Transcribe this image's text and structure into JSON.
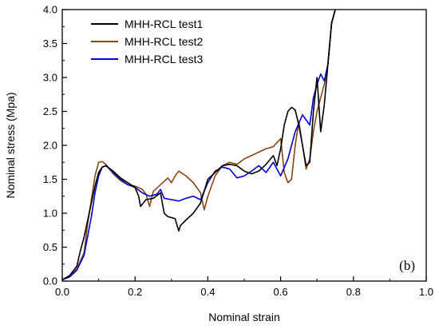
{
  "chart_data": {
    "type": "line",
    "title": "",
    "xlabel": "Nominal strain",
    "ylabel": "Nominal stress (Mpa)",
    "xlim": [
      0.0,
      1.0
    ],
    "ylim": [
      0.0,
      4.0
    ],
    "x_ticks": [
      "0.0",
      "0.2",
      "0.4",
      "0.6",
      "0.8",
      "1.0"
    ],
    "y_ticks": [
      "0.0",
      "0.5",
      "1.0",
      "1.5",
      "2.0",
      "2.5",
      "3.0",
      "3.5",
      "4.0"
    ],
    "grid": false,
    "legend_position": "top-left",
    "annotation": "(b)",
    "series": [
      {
        "name": "MHH-RCL test1",
        "color": "#000000",
        "points": [
          [
            0.0,
            0.02
          ],
          [
            0.02,
            0.08
          ],
          [
            0.04,
            0.22
          ],
          [
            0.05,
            0.45
          ],
          [
            0.06,
            0.65
          ],
          [
            0.07,
            0.9
          ],
          [
            0.08,
            1.15
          ],
          [
            0.09,
            1.4
          ],
          [
            0.1,
            1.6
          ],
          [
            0.11,
            1.68
          ],
          [
            0.12,
            1.7
          ],
          [
            0.14,
            1.62
          ],
          [
            0.16,
            1.52
          ],
          [
            0.18,
            1.45
          ],
          [
            0.2,
            1.38
          ],
          [
            0.21,
            1.25
          ],
          [
            0.215,
            1.1
          ],
          [
            0.23,
            1.2
          ],
          [
            0.25,
            1.22
          ],
          [
            0.27,
            1.3
          ],
          [
            0.28,
            1.0
          ],
          [
            0.29,
            0.95
          ],
          [
            0.31,
            0.92
          ],
          [
            0.32,
            0.74
          ],
          [
            0.325,
            0.82
          ],
          [
            0.34,
            0.9
          ],
          [
            0.36,
            1.0
          ],
          [
            0.38,
            1.15
          ],
          [
            0.4,
            1.5
          ],
          [
            0.42,
            1.6
          ],
          [
            0.44,
            1.7
          ],
          [
            0.46,
            1.72
          ],
          [
            0.48,
            1.7
          ],
          [
            0.5,
            1.62
          ],
          [
            0.52,
            1.58
          ],
          [
            0.54,
            1.62
          ],
          [
            0.56,
            1.72
          ],
          [
            0.58,
            1.85
          ],
          [
            0.59,
            1.7
          ],
          [
            0.6,
            1.95
          ],
          [
            0.61,
            2.3
          ],
          [
            0.62,
            2.5
          ],
          [
            0.63,
            2.56
          ],
          [
            0.64,
            2.52
          ],
          [
            0.65,
            2.3
          ],
          [
            0.66,
            2.0
          ],
          [
            0.67,
            1.7
          ],
          [
            0.68,
            1.75
          ],
          [
            0.69,
            2.5
          ],
          [
            0.7,
            3.0
          ],
          [
            0.71,
            2.2
          ],
          [
            0.72,
            2.6
          ],
          [
            0.73,
            3.2
          ],
          [
            0.74,
            3.8
          ],
          [
            0.75,
            4.0
          ]
        ]
      },
      {
        "name": "MHH-RCL test2",
        "color": "#8B4513",
        "points": [
          [
            0.0,
            0.02
          ],
          [
            0.02,
            0.07
          ],
          [
            0.04,
            0.18
          ],
          [
            0.06,
            0.42
          ],
          [
            0.07,
            0.85
          ],
          [
            0.08,
            1.2
          ],
          [
            0.09,
            1.55
          ],
          [
            0.1,
            1.75
          ],
          [
            0.11,
            1.76
          ],
          [
            0.12,
            1.72
          ],
          [
            0.14,
            1.58
          ],
          [
            0.16,
            1.48
          ],
          [
            0.18,
            1.42
          ],
          [
            0.2,
            1.4
          ],
          [
            0.22,
            1.35
          ],
          [
            0.23,
            1.28
          ],
          [
            0.24,
            1.1
          ],
          [
            0.25,
            1.32
          ],
          [
            0.27,
            1.42
          ],
          [
            0.29,
            1.52
          ],
          [
            0.3,
            1.45
          ],
          [
            0.31,
            1.55
          ],
          [
            0.32,
            1.62
          ],
          [
            0.34,
            1.55
          ],
          [
            0.36,
            1.45
          ],
          [
            0.38,
            1.3
          ],
          [
            0.39,
            1.05
          ],
          [
            0.4,
            1.25
          ],
          [
            0.42,
            1.55
          ],
          [
            0.44,
            1.7
          ],
          [
            0.46,
            1.75
          ],
          [
            0.48,
            1.72
          ],
          [
            0.5,
            1.8
          ],
          [
            0.52,
            1.85
          ],
          [
            0.54,
            1.9
          ],
          [
            0.56,
            1.95
          ],
          [
            0.58,
            1.98
          ],
          [
            0.6,
            2.1
          ],
          [
            0.61,
            1.6
          ],
          [
            0.62,
            1.45
          ],
          [
            0.63,
            1.5
          ],
          [
            0.64,
            2.0
          ],
          [
            0.65,
            2.35
          ],
          [
            0.66,
            2.0
          ],
          [
            0.67,
            1.65
          ],
          [
            0.68,
            1.8
          ],
          [
            0.69,
            2.2
          ],
          [
            0.7,
            2.5
          ],
          [
            0.72,
            2.9
          ],
          [
            0.73,
            3.2
          ],
          [
            0.74,
            3.8
          ],
          [
            0.75,
            4.0
          ]
        ]
      },
      {
        "name": "MHH-RCL test3",
        "color": "#0000CC",
        "points": [
          [
            0.0,
            0.02
          ],
          [
            0.02,
            0.06
          ],
          [
            0.04,
            0.16
          ],
          [
            0.06,
            0.38
          ],
          [
            0.08,
            0.95
          ],
          [
            0.09,
            1.3
          ],
          [
            0.1,
            1.55
          ],
          [
            0.11,
            1.68
          ],
          [
            0.12,
            1.7
          ],
          [
            0.14,
            1.6
          ],
          [
            0.16,
            1.5
          ],
          [
            0.18,
            1.42
          ],
          [
            0.2,
            1.38
          ],
          [
            0.22,
            1.3
          ],
          [
            0.24,
            1.25
          ],
          [
            0.26,
            1.28
          ],
          [
            0.27,
            1.35
          ],
          [
            0.28,
            1.22
          ],
          [
            0.3,
            1.2
          ],
          [
            0.32,
            1.18
          ],
          [
            0.34,
            1.22
          ],
          [
            0.36,
            1.25
          ],
          [
            0.38,
            1.2
          ],
          [
            0.4,
            1.45
          ],
          [
            0.42,
            1.62
          ],
          [
            0.44,
            1.68
          ],
          [
            0.46,
            1.65
          ],
          [
            0.48,
            1.52
          ],
          [
            0.5,
            1.55
          ],
          [
            0.52,
            1.62
          ],
          [
            0.54,
            1.7
          ],
          [
            0.56,
            1.6
          ],
          [
            0.58,
            1.75
          ],
          [
            0.6,
            1.55
          ],
          [
            0.62,
            1.8
          ],
          [
            0.64,
            2.2
          ],
          [
            0.66,
            2.45
          ],
          [
            0.68,
            2.3
          ],
          [
            0.69,
            2.7
          ],
          [
            0.7,
            2.9
          ],
          [
            0.71,
            3.05
          ],
          [
            0.72,
            2.95
          ],
          [
            0.73,
            3.2
          ],
          [
            0.74,
            3.8
          ],
          [
            0.75,
            4.0
          ]
        ]
      }
    ]
  }
}
